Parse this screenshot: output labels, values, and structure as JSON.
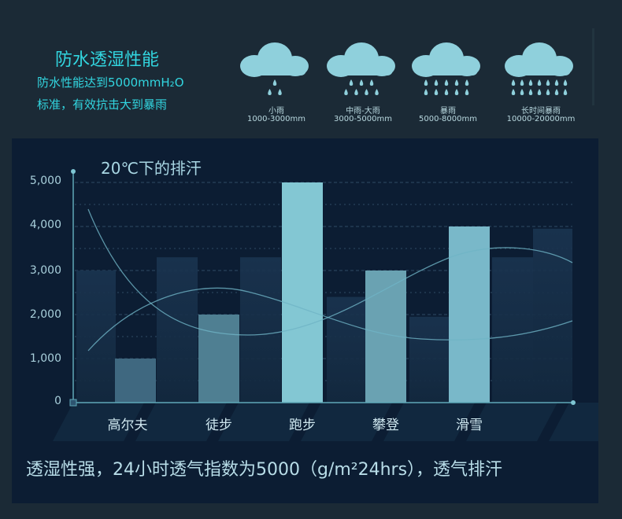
{
  "waterproof": {
    "title": "防水透湿性能",
    "line1": "防水性能达到5000mmH₂O",
    "line2": "标准，有效抗击大到暴雨",
    "levels": [
      {
        "name": "小雨",
        "range": "1000-3000mm",
        "drops": [
          1,
          2
        ]
      },
      {
        "name": "中雨-大雨",
        "range": "3000-5000mm",
        "drops": [
          3,
          4
        ]
      },
      {
        "name": "暴雨",
        "range": "5000-8000mm",
        "drops": [
          5,
          5
        ]
      },
      {
        "name": "长时间暴雨",
        "range": "10000-20000mm",
        "drops": [
          7,
          7
        ]
      }
    ],
    "cloud_color": "#8fd0dc"
  },
  "chart_data": {
    "type": "bar",
    "title": "20℃下的排汗",
    "categories": [
      "高尔夫",
      "徒步",
      "跑步",
      "攀登",
      "滑雪"
    ],
    "values": [
      1000,
      2000,
      5000,
      3000,
      4000
    ],
    "ylim": [
      0,
      5000
    ],
    "yticks": [
      "0",
      "1,000",
      "2,000",
      "3,000",
      "4,000",
      "5,000"
    ],
    "xlabel": "",
    "ylabel": "",
    "grid": true,
    "legend": "none",
    "bar_colors": [
      "#3f6880",
      "#4f7f92",
      "#83c7d3",
      "#6aa2b2",
      "#79b8c9"
    ]
  },
  "caption": "透湿性强，24小时透气指数为5000（g/m²24hrs），透气排汗"
}
